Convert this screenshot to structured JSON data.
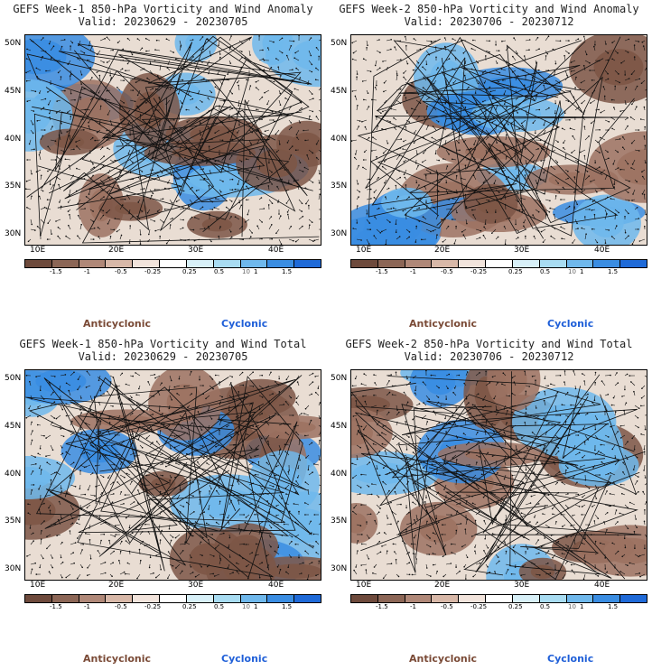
{
  "panels": [
    {
      "title1": "GEFS Week-1 850-hPa Vorticity and Wind Anomaly",
      "title2": "Valid: 20230629 - 20230705",
      "seed": 11
    },
    {
      "title1": "GEFS Week-2 850-hPa Vorticity and Wind Anomaly",
      "title2": "Valid: 20230706 - 20230712",
      "seed": 23
    },
    {
      "title1": "GEFS Week-1 850-hPa Vorticity and Wind Total",
      "title2": "Valid: 20230629 - 20230705",
      "seed": 37
    },
    {
      "title1": "GEFS Week-2 850-hPa Vorticity and Wind Total",
      "title2": "Valid: 20230706 - 20230712",
      "seed": 53
    }
  ],
  "axes": {
    "lat_labels": [
      "50N",
      "45N",
      "40N",
      "35N",
      "30N"
    ],
    "lon_labels": [
      "10E",
      "20E",
      "30E",
      "40E"
    ]
  },
  "colorbar": {
    "labels": [
      "-1.5",
      "-1",
      "-0.5",
      "-0.25",
      "0.25",
      "0.5",
      "1",
      "1.5"
    ],
    "extra_label": "10",
    "colors": [
      "#6e4a3c",
      "#8c6656",
      "#b08878",
      "#d8b8a8",
      "#f2e4dc",
      "#ffffff",
      "#d8f0f8",
      "#a8dcf2",
      "#6fb8ec",
      "#3a8de2",
      "#1f6ad8"
    ]
  },
  "legend": {
    "anticyclonic": "Anticyclonic",
    "cyclonic": "Cyclonic"
  },
  "colors": {
    "anticyclonic": "#7a4a36",
    "cyclonic": "#1f5fd8"
  }
}
